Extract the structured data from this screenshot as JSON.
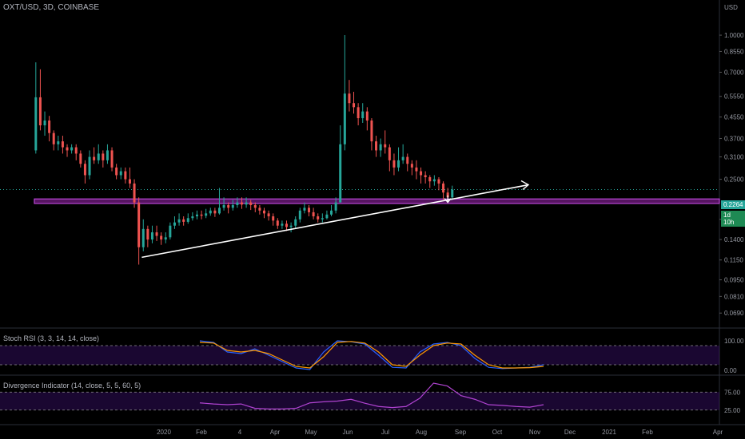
{
  "header": {
    "symbol": "OXT/USD, 3D, COINBASE"
  },
  "price_axis": {
    "ticks": [
      "1.0000",
      "0.8550",
      "0.7000",
      "0.5550",
      "0.4550",
      "0.3700",
      "0.3100",
      "0.2500",
      "0.1700",
      "0.1400",
      "0.1150",
      "0.0950",
      "0.0810",
      "0.0690"
    ],
    "corner": [
      "USD"
    ],
    "current_price": "0.2264",
    "countdown": "1d 10h",
    "current_color": "#26a69a",
    "countdown_color": "#1e8a54"
  },
  "time_axis": {
    "labels": [
      "2020",
      "Feb",
      "4",
      "Apr",
      "May",
      "Jun",
      "Jul",
      "Aug",
      "Sep",
      "Oct",
      "Nov",
      "Dec",
      "2021",
      "Feb",
      "Apr"
    ]
  },
  "indicators": {
    "stoch_rsi": {
      "title": "Stoch RSI (3, 3, 14, 14, close)",
      "ticks": [
        "100.00",
        "0.00"
      ]
    },
    "divergence": {
      "title": "Divergence Indicator (14, close, 5, 5, 60, 5)",
      "ticks": [
        "75.00",
        "25.00"
      ]
    }
  },
  "colors": {
    "up": "#26a69a",
    "down": "#ef5350",
    "support_zone": "#9c27b0",
    "trendline": "#ffffff",
    "k_line": "#2962ff",
    "d_line": "#ff9800",
    "divergence_line": "#b043d1"
  },
  "chart_data": {
    "type": "candlestick",
    "title": "OXT/USD, 3D, COINBASE",
    "y_scale": "log",
    "ylim": [
      0.065,
      1.25
    ],
    "x_range": [
      "2019-12-10",
      "2021-04-05"
    ],
    "candles": [
      [
        "2020-01-03",
        0.33,
        0.55,
        0.77,
        0.32
      ],
      [
        "2020-01-06",
        0.55,
        0.42,
        0.72,
        0.4
      ],
      [
        "2020-01-09",
        0.42,
        0.44,
        0.48,
        0.38
      ],
      [
        "2020-01-12",
        0.44,
        0.39,
        0.46,
        0.36
      ],
      [
        "2020-01-15",
        0.39,
        0.35,
        0.4,
        0.33
      ],
      [
        "2020-01-18",
        0.35,
        0.36,
        0.38,
        0.33
      ],
      [
        "2020-01-21",
        0.36,
        0.34,
        0.38,
        0.32
      ],
      [
        "2020-01-24",
        0.34,
        0.33,
        0.35,
        0.31
      ],
      [
        "2020-01-27",
        0.33,
        0.34,
        0.35,
        0.32
      ],
      [
        "2020-01-30",
        0.34,
        0.32,
        0.35,
        0.3
      ],
      [
        "2020-02-02",
        0.32,
        0.29,
        0.33,
        0.28
      ],
      [
        "2020-02-05",
        0.29,
        0.26,
        0.3,
        0.24
      ],
      [
        "2020-02-08",
        0.26,
        0.31,
        0.33,
        0.25
      ],
      [
        "2020-02-11",
        0.31,
        0.3,
        0.34,
        0.29
      ],
      [
        "2020-02-14",
        0.3,
        0.32,
        0.35,
        0.29
      ],
      [
        "2020-02-17",
        0.32,
        0.3,
        0.33,
        0.28
      ],
      [
        "2020-02-20",
        0.3,
        0.33,
        0.35,
        0.29
      ],
      [
        "2020-02-23",
        0.33,
        0.28,
        0.34,
        0.27
      ],
      [
        "2020-02-26",
        0.28,
        0.26,
        0.29,
        0.25
      ],
      [
        "2020-02-29",
        0.26,
        0.27,
        0.28,
        0.25
      ],
      [
        "2020-03-03",
        0.27,
        0.25,
        0.28,
        0.24
      ],
      [
        "2020-03-06",
        0.25,
        0.24,
        0.28,
        0.23
      ],
      [
        "2020-03-09",
        0.24,
        0.2,
        0.25,
        0.19
      ],
      [
        "2020-03-12",
        0.2,
        0.13,
        0.21,
        0.11
      ],
      [
        "2020-03-15",
        0.13,
        0.155,
        0.17,
        0.125
      ],
      [
        "2020-03-18",
        0.155,
        0.14,
        0.16,
        0.13
      ],
      [
        "2020-03-21",
        0.14,
        0.15,
        0.16,
        0.135
      ],
      [
        "2020-03-24",
        0.15,
        0.145,
        0.16,
        0.138
      ],
      [
        "2020-03-27",
        0.145,
        0.14,
        0.15,
        0.133
      ],
      [
        "2020-03-30",
        0.14,
        0.143,
        0.15,
        0.135
      ],
      [
        "2020-04-02",
        0.143,
        0.16,
        0.165,
        0.14
      ],
      [
        "2020-04-05",
        0.16,
        0.165,
        0.175,
        0.155
      ],
      [
        "2020-04-08",
        0.165,
        0.17,
        0.18,
        0.16
      ],
      [
        "2020-04-11",
        0.17,
        0.166,
        0.175,
        0.16
      ],
      [
        "2020-04-14",
        0.166,
        0.172,
        0.18,
        0.163
      ],
      [
        "2020-04-17",
        0.172,
        0.175,
        0.182,
        0.168
      ],
      [
        "2020-04-20",
        0.175,
        0.178,
        0.185,
        0.17
      ],
      [
        "2020-04-23",
        0.178,
        0.176,
        0.185,
        0.17
      ],
      [
        "2020-04-26",
        0.176,
        0.18,
        0.188,
        0.172
      ],
      [
        "2020-04-29",
        0.18,
        0.185,
        0.19,
        0.176
      ],
      [
        "2020-05-02",
        0.185,
        0.18,
        0.19,
        0.174
      ],
      [
        "2020-05-05",
        0.18,
        0.19,
        0.23,
        0.178
      ],
      [
        "2020-05-08",
        0.19,
        0.195,
        0.21,
        0.185
      ],
      [
        "2020-05-11",
        0.195,
        0.19,
        0.2,
        0.18
      ],
      [
        "2020-05-14",
        0.19,
        0.195,
        0.205,
        0.185
      ],
      [
        "2020-05-17",
        0.195,
        0.2,
        0.21,
        0.19
      ],
      [
        "2020-05-20",
        0.2,
        0.196,
        0.21,
        0.188
      ],
      [
        "2020-05-23",
        0.196,
        0.2,
        0.21,
        0.19
      ],
      [
        "2020-05-26",
        0.2,
        0.195,
        0.205,
        0.186
      ],
      [
        "2020-05-29",
        0.195,
        0.19,
        0.2,
        0.182
      ],
      [
        "2020-06-01",
        0.19,
        0.185,
        0.195,
        0.178
      ],
      [
        "2020-06-04",
        0.185,
        0.18,
        0.19,
        0.172
      ],
      [
        "2020-06-07",
        0.18,
        0.175,
        0.185,
        0.168
      ],
      [
        "2020-06-10",
        0.175,
        0.168,
        0.18,
        0.16
      ],
      [
        "2020-06-13",
        0.168,
        0.16,
        0.172,
        0.155
      ],
      [
        "2020-06-16",
        0.16,
        0.163,
        0.168,
        0.155
      ],
      [
        "2020-06-19",
        0.163,
        0.158,
        0.168,
        0.152
      ],
      [
        "2020-06-22",
        0.158,
        0.16,
        0.165,
        0.15
      ],
      [
        "2020-06-25",
        0.16,
        0.17,
        0.175,
        0.155
      ],
      [
        "2020-06-28",
        0.17,
        0.185,
        0.19,
        0.165
      ],
      [
        "2020-07-01",
        0.185,
        0.19,
        0.2,
        0.18
      ],
      [
        "2020-07-04",
        0.19,
        0.182,
        0.195,
        0.175
      ],
      [
        "2020-07-07",
        0.182,
        0.175,
        0.19,
        0.17
      ],
      [
        "2020-07-10",
        0.175,
        0.17,
        0.18,
        0.165
      ],
      [
        "2020-07-13",
        0.17,
        0.172,
        0.18,
        0.165
      ],
      [
        "2020-07-16",
        0.172,
        0.178,
        0.185,
        0.17
      ],
      [
        "2020-07-19",
        0.178,
        0.185,
        0.195,
        0.175
      ],
      [
        "2020-07-22",
        0.185,
        0.2,
        0.21,
        0.18
      ],
      [
        "2020-07-25",
        0.2,
        0.35,
        0.42,
        0.2
      ],
      [
        "2020-07-28",
        0.35,
        0.57,
        1.0,
        0.33
      ],
      [
        "2020-07-31",
        0.57,
        0.52,
        0.65,
        0.48
      ],
      [
        "2020-08-03",
        0.52,
        0.5,
        0.58,
        0.47
      ],
      [
        "2020-08-06",
        0.5,
        0.45,
        0.52,
        0.42
      ],
      [
        "2020-08-09",
        0.45,
        0.48,
        0.52,
        0.43
      ],
      [
        "2020-08-12",
        0.48,
        0.44,
        0.5,
        0.4
      ],
      [
        "2020-08-15",
        0.44,
        0.36,
        0.45,
        0.33
      ],
      [
        "2020-08-18",
        0.36,
        0.33,
        0.38,
        0.31
      ],
      [
        "2020-08-21",
        0.33,
        0.35,
        0.37,
        0.31
      ],
      [
        "2020-08-24",
        0.35,
        0.34,
        0.4,
        0.32
      ],
      [
        "2020-08-27",
        0.34,
        0.3,
        0.35,
        0.27
      ],
      [
        "2020-08-30",
        0.3,
        0.28,
        0.32,
        0.26
      ],
      [
        "2020-09-02",
        0.28,
        0.3,
        0.34,
        0.27
      ],
      [
        "2020-09-05",
        0.3,
        0.31,
        0.35,
        0.29
      ],
      [
        "2020-09-08",
        0.31,
        0.29,
        0.32,
        0.27
      ],
      [
        "2020-09-11",
        0.29,
        0.28,
        0.3,
        0.26
      ],
      [
        "2020-09-14",
        0.28,
        0.27,
        0.3,
        0.25
      ],
      [
        "2020-09-17",
        0.27,
        0.26,
        0.28,
        0.24
      ],
      [
        "2020-09-20",
        0.26,
        0.255,
        0.27,
        0.24
      ],
      [
        "2020-09-23",
        0.255,
        0.245,
        0.26,
        0.23
      ],
      [
        "2020-09-26",
        0.245,
        0.25,
        0.26,
        0.235
      ],
      [
        "2020-09-29",
        0.25,
        0.24,
        0.255,
        0.225
      ],
      [
        "2020-10-02",
        0.24,
        0.22,
        0.245,
        0.205
      ],
      [
        "2020-10-05",
        0.22,
        0.21,
        0.23,
        0.2
      ],
      [
        "2020-10-08",
        0.21,
        0.2264,
        0.235,
        0.205
      ]
    ],
    "annotations": {
      "support_zone": [
        0.198,
        0.207
      ],
      "trendline": {
        "from": [
          "2020-03-14",
          0.118
        ],
        "to": [
          "2020-11-28",
          0.237
        ]
      },
      "current_price": 0.2264
    },
    "stoch_rsi": {
      "ylim": [
        0,
        100
      ],
      "band": [
        20,
        80
      ],
      "k": [
        [
          0,
          95
        ],
        [
          4,
          90
        ],
        [
          8,
          60
        ],
        [
          12,
          55
        ],
        [
          16,
          70
        ],
        [
          20,
          50
        ],
        [
          24,
          30
        ],
        [
          28,
          10
        ],
        [
          32,
          5
        ],
        [
          36,
          60
        ],
        [
          40,
          95
        ],
        [
          44,
          92
        ],
        [
          48,
          85
        ],
        [
          52,
          50
        ],
        [
          56,
          12
        ],
        [
          60,
          10
        ],
        [
          64,
          60
        ],
        [
          68,
          85
        ],
        [
          72,
          90
        ],
        [
          76,
          80
        ],
        [
          80,
          40
        ],
        [
          84,
          12
        ],
        [
          88,
          8
        ],
        [
          92,
          10
        ],
        [
          96,
          12
        ],
        [
          100,
          20
        ]
      ],
      "d": [
        [
          0,
          90
        ],
        [
          4,
          88
        ],
        [
          8,
          65
        ],
        [
          12,
          60
        ],
        [
          16,
          65
        ],
        [
          20,
          55
        ],
        [
          24,
          35
        ],
        [
          28,
          15
        ],
        [
          32,
          10
        ],
        [
          36,
          45
        ],
        [
          40,
          90
        ],
        [
          44,
          93
        ],
        [
          48,
          88
        ],
        [
          52,
          60
        ],
        [
          56,
          20
        ],
        [
          60,
          15
        ],
        [
          64,
          50
        ],
        [
          68,
          80
        ],
        [
          72,
          88
        ],
        [
          76,
          85
        ],
        [
          80,
          50
        ],
        [
          84,
          20
        ],
        [
          88,
          10
        ],
        [
          92,
          10
        ],
        [
          96,
          11
        ],
        [
          100,
          15
        ]
      ]
    },
    "divergence": {
      "ylim": [
        0,
        100
      ],
      "band": [
        25,
        75
      ],
      "values": [
        [
          0,
          45
        ],
        [
          4,
          42
        ],
        [
          8,
          40
        ],
        [
          12,
          42
        ],
        [
          16,
          30
        ],
        [
          20,
          28
        ],
        [
          24,
          28
        ],
        [
          28,
          30
        ],
        [
          32,
          45
        ],
        [
          36,
          48
        ],
        [
          40,
          50
        ],
        [
          44,
          55
        ],
        [
          48,
          44
        ],
        [
          52,
          35
        ],
        [
          56,
          32
        ],
        [
          60,
          35
        ],
        [
          64,
          58
        ],
        [
          68,
          100
        ],
        [
          72,
          92
        ],
        [
          76,
          65
        ],
        [
          80,
          55
        ],
        [
          84,
          40
        ],
        [
          88,
          38
        ],
        [
          92,
          35
        ],
        [
          96,
          33
        ],
        [
          100,
          40
        ]
      ]
    }
  }
}
